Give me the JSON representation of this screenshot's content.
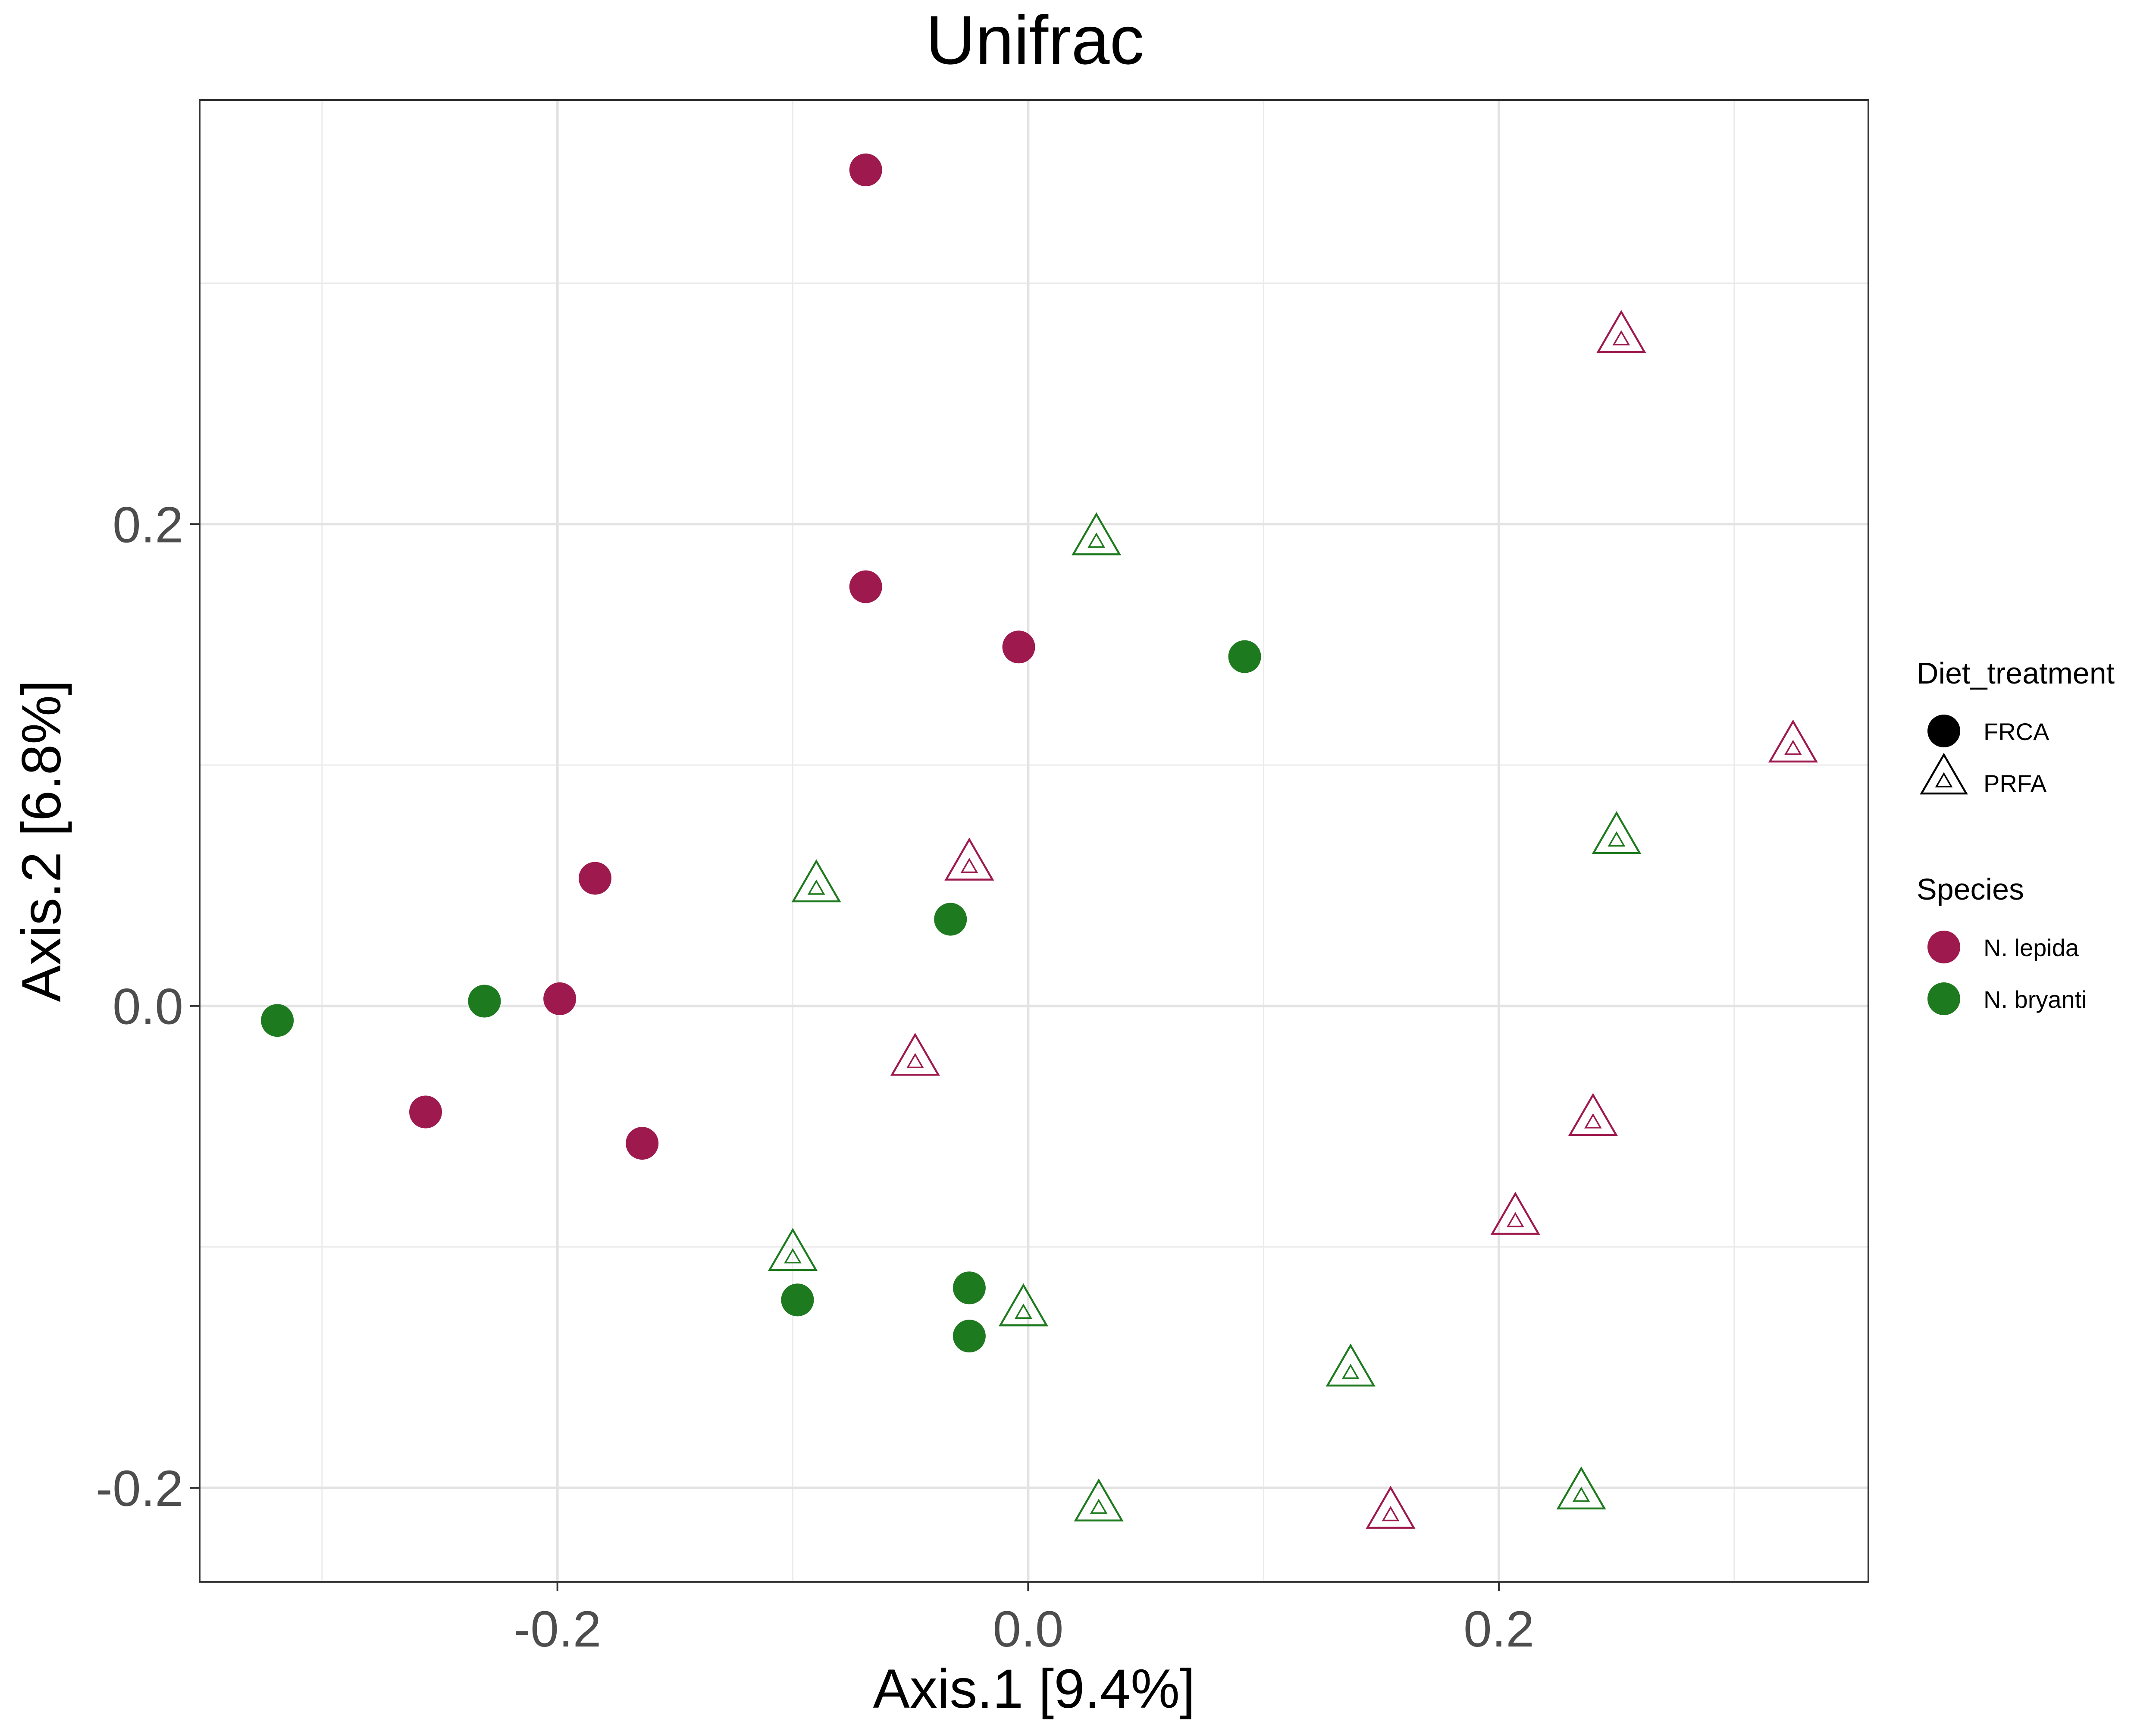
{
  "chart_data": {
    "type": "scatter",
    "title": "Unifrac",
    "xlabel": "Axis.1   [9.4%]",
    "ylabel": "Axis.2   [6.8%]",
    "xlim": [
      -0.352,
      0.357
    ],
    "ylim": [
      -0.239,
      0.376
    ],
    "x_ticks": [
      -0.2,
      0.0,
      0.2
    ],
    "x_tick_labels": [
      "-0.2",
      "0.0",
      "0.2"
    ],
    "y_ticks": [
      -0.2,
      0.0,
      0.2
    ],
    "y_tick_labels": [
      "-0.2",
      "0.0",
      "0.2"
    ],
    "x_minor_grid": [
      -0.3,
      -0.1,
      0.1,
      0.3
    ],
    "y_minor_grid": [
      -0.1,
      0.1,
      0.3
    ],
    "grid": true,
    "legend_position": "right",
    "colors": {
      "N. lepida": "#9e1a4e",
      "N. bryanti": "#1e7a1e"
    },
    "legends": [
      {
        "title": "Diet_treatment",
        "entries": [
          {
            "label": "FRCA",
            "shape": "circle"
          },
          {
            "label": "PRFA",
            "shape": "triangle"
          }
        ]
      },
      {
        "title": "Species",
        "entries": [
          {
            "label": "N. lepida",
            "color": "#9e1a4e"
          },
          {
            "label": "N. bryanti",
            "color": "#1e7a1e"
          }
        ]
      }
    ],
    "points": [
      {
        "x": -0.069,
        "y": 0.347,
        "species": "N. lepida",
        "diet": "FRCA"
      },
      {
        "x": -0.069,
        "y": 0.174,
        "species": "N. lepida",
        "diet": "FRCA"
      },
      {
        "x": -0.004,
        "y": 0.149,
        "species": "N. lepida",
        "diet": "FRCA"
      },
      {
        "x": -0.184,
        "y": 0.053,
        "species": "N. lepida",
        "diet": "FRCA"
      },
      {
        "x": -0.199,
        "y": 0.003,
        "species": "N. lepida",
        "diet": "FRCA"
      },
      {
        "x": -0.256,
        "y": -0.044,
        "species": "N. lepida",
        "diet": "FRCA"
      },
      {
        "x": -0.164,
        "y": -0.057,
        "species": "N. lepida",
        "diet": "FRCA"
      },
      {
        "x": 0.092,
        "y": 0.145,
        "species": "N. bryanti",
        "diet": "FRCA"
      },
      {
        "x": -0.033,
        "y": 0.036,
        "species": "N. bryanti",
        "diet": "FRCA"
      },
      {
        "x": -0.231,
        "y": 0.002,
        "species": "N. bryanti",
        "diet": "FRCA"
      },
      {
        "x": -0.319,
        "y": -0.006,
        "species": "N. bryanti",
        "diet": "FRCA"
      },
      {
        "x": -0.098,
        "y": -0.122,
        "species": "N. bryanti",
        "diet": "FRCA"
      },
      {
        "x": -0.025,
        "y": -0.117,
        "species": "N. bryanti",
        "diet": "FRCA"
      },
      {
        "x": -0.025,
        "y": -0.137,
        "species": "N. bryanti",
        "diet": "FRCA"
      },
      {
        "x": 0.252,
        "y": 0.277,
        "species": "N. lepida",
        "diet": "PRFA"
      },
      {
        "x": 0.325,
        "y": 0.107,
        "species": "N. lepida",
        "diet": "PRFA"
      },
      {
        "x": -0.025,
        "y": 0.058,
        "species": "N. lepida",
        "diet": "PRFA"
      },
      {
        "x": -0.048,
        "y": -0.023,
        "species": "N. lepida",
        "diet": "PRFA"
      },
      {
        "x": 0.24,
        "y": -0.048,
        "species": "N. lepida",
        "diet": "PRFA"
      },
      {
        "x": 0.207,
        "y": -0.089,
        "species": "N. lepida",
        "diet": "PRFA"
      },
      {
        "x": 0.154,
        "y": -0.211,
        "species": "N. lepida",
        "diet": "PRFA"
      },
      {
        "x": 0.029,
        "y": 0.193,
        "species": "N. bryanti",
        "diet": "PRFA"
      },
      {
        "x": -0.09,
        "y": 0.049,
        "species": "N. bryanti",
        "diet": "PRFA"
      },
      {
        "x": 0.25,
        "y": 0.069,
        "species": "N. bryanti",
        "diet": "PRFA"
      },
      {
        "x": -0.1,
        "y": -0.104,
        "species": "N. bryanti",
        "diet": "PRFA"
      },
      {
        "x": -0.002,
        "y": -0.127,
        "species": "N. bryanti",
        "diet": "PRFA"
      },
      {
        "x": 0.137,
        "y": -0.152,
        "species": "N. bryanti",
        "diet": "PRFA"
      },
      {
        "x": 0.235,
        "y": -0.203,
        "species": "N. bryanti",
        "diet": "PRFA"
      },
      {
        "x": 0.03,
        "y": -0.208,
        "species": "N. bryanti",
        "diet": "PRFA"
      }
    ]
  }
}
